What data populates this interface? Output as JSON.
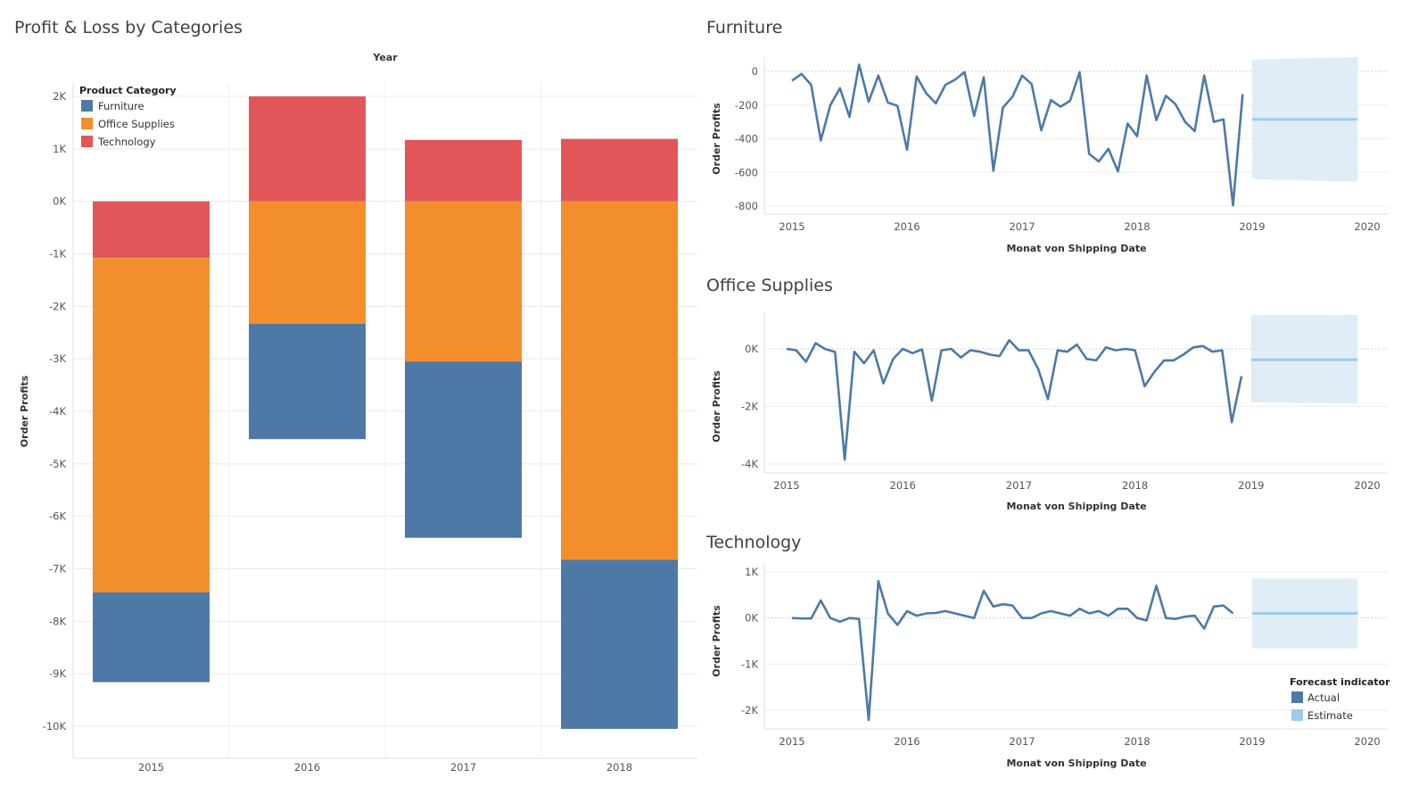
{
  "titles": {
    "left": "Profit & Loss by Categories",
    "furniture": "Furniture",
    "office": "Office Supplies",
    "technology": "Technology"
  },
  "colors": {
    "Furniture": "#4e79a7",
    "Office Supplies": "#f28e2b",
    "Technology": "#e15759",
    "actual": "#4e79a7",
    "estimate": "#a0cbe8",
    "band": "#dfedf7",
    "grid": "#e9e9e9"
  },
  "legend": {
    "title": "Product Category",
    "items": [
      "Furniture",
      "Office Supplies",
      "Technology"
    ]
  },
  "forecast_legend": {
    "title": "Forecast indicator",
    "items": [
      "Actual",
      "Estimate"
    ]
  },
  "chart_data": [
    {
      "type": "bar",
      "stacked": true,
      "xlabel": "Year",
      "ylabel": "Order Profits",
      "categories": [
        "2015",
        "2016",
        "2017",
        "2018"
      ],
      "ylim": [
        -10000,
        2000
      ],
      "yticks": [
        2000,
        1000,
        0,
        -1000,
        -2000,
        -3000,
        -4000,
        -5000,
        -6000,
        -7000,
        -8000,
        -9000,
        -10000
      ],
      "ytick_labels": [
        "2K",
        "1K",
        "0K",
        "-1K",
        "-2K",
        "-3K",
        "-4K",
        "-5K",
        "-6K",
        "-7K",
        "-8K",
        "-9K",
        "-10K"
      ],
      "series": [
        {
          "name": "Technology",
          "values": [
            -1080,
            2000,
            1170,
            1190
          ]
        },
        {
          "name": "Office Supplies",
          "values": [
            -6370,
            -2330,
            -3050,
            -6830
          ]
        },
        {
          "name": "Furniture",
          "values": [
            -1710,
            -2200,
            -3360,
            -3220
          ]
        }
      ]
    },
    {
      "type": "line",
      "title": "Furniture",
      "xlabel": "Monat von Shipping Date",
      "ylabel": "Order Profits",
      "xlim": [
        2015,
        2020
      ],
      "xticks": [
        "2015",
        "2016",
        "2017",
        "2018",
        "2019",
        "2020"
      ],
      "ylim": [
        -800,
        0
      ],
      "yticks": [
        0,
        -200,
        -400,
        -600,
        -800
      ],
      "ytick_labels": [
        "0",
        "-200",
        "-400",
        "-600",
        "-800"
      ],
      "actual": {
        "start": "2015-01",
        "values": [
          -55,
          -15,
          -80,
          -410,
          -200,
          -100,
          -270,
          40,
          -180,
          -25,
          -185,
          -205,
          -465,
          -30,
          -130,
          -190,
          -80,
          -50,
          -5,
          -265,
          -35,
          -590,
          -215,
          -150,
          -25,
          -75,
          -350,
          -170,
          -210,
          -175,
          -5,
          -490,
          -535,
          -460,
          -595,
          -310,
          -385,
          -25,
          -290,
          -145,
          -195,
          -300,
          -355,
          -25,
          -300,
          -285,
          -795,
          -135
        ]
      },
      "forecast": {
        "start": "2019-01",
        "end": "2019-12",
        "estimate": -285,
        "band_low": [
          -640,
          -655
        ],
        "band_high": [
          70,
          85
        ]
      }
    },
    {
      "type": "line",
      "title": "Office Supplies",
      "xlabel": "Monat von Shipping Date",
      "ylabel": "Order Profits",
      "xlim": [
        2015,
        2020
      ],
      "xticks": [
        "2015",
        "2016",
        "2017",
        "2018",
        "2019",
        "2020"
      ],
      "ylim": [
        -4000,
        0
      ],
      "yticks": [
        0,
        -2000,
        -4000
      ],
      "ytick_labels": [
        "0K",
        "-2K",
        "-4K"
      ],
      "actual": {
        "start": "2015-01",
        "values": [
          0,
          -50,
          -450,
          200,
          -10,
          -110,
          -3850,
          -100,
          -500,
          -50,
          -1200,
          -350,
          0,
          -150,
          -20,
          -1800,
          -50,
          0,
          -300,
          -50,
          -100,
          -200,
          -250,
          300,
          -50,
          -50,
          -700,
          -1750,
          -50,
          -100,
          150,
          -350,
          -400,
          50,
          -50,
          0,
          -50,
          -1300,
          -800,
          -400,
          -400,
          -200,
          50,
          100,
          -100,
          -50,
          -2550,
          -950
        ]
      },
      "forecast": {
        "start": "2019-01",
        "end": "2019-12",
        "estimate": -380,
        "band_low": [
          -1860,
          -1900
        ],
        "band_high": [
          1170,
          1180
        ]
      }
    },
    {
      "type": "line",
      "title": "Technology",
      "xlabel": "Monat von Shipping Date",
      "ylabel": "Order Profits",
      "xlim": [
        2015,
        2020
      ],
      "xticks": [
        "2015",
        "2016",
        "2017",
        "2018",
        "2019",
        "2020"
      ],
      "ylim": [
        -2000,
        1000
      ],
      "yticks": [
        1000,
        0,
        -1000,
        -2000
      ],
      "ytick_labels": [
        "1K",
        "0K",
        "-1K",
        "-2K"
      ],
      "actual": {
        "start": "2015-01",
        "values": [
          0,
          -10,
          -10,
          380,
          0,
          -80,
          0,
          -20,
          -2210,
          800,
          100,
          -150,
          150,
          50,
          100,
          110,
          150,
          100,
          50,
          0,
          590,
          250,
          300,
          270,
          0,
          0,
          100,
          150,
          100,
          50,
          200,
          100,
          150,
          50,
          200,
          200,
          0,
          -50,
          700,
          0,
          -20,
          30,
          50,
          -230,
          250,
          270,
          100
        ]
      },
      "forecast": {
        "start": "2019-01",
        "end": "2019-12",
        "estimate": 100,
        "band_low": [
          -660,
          -660
        ],
        "band_high": [
          860,
          860
        ]
      }
    }
  ]
}
